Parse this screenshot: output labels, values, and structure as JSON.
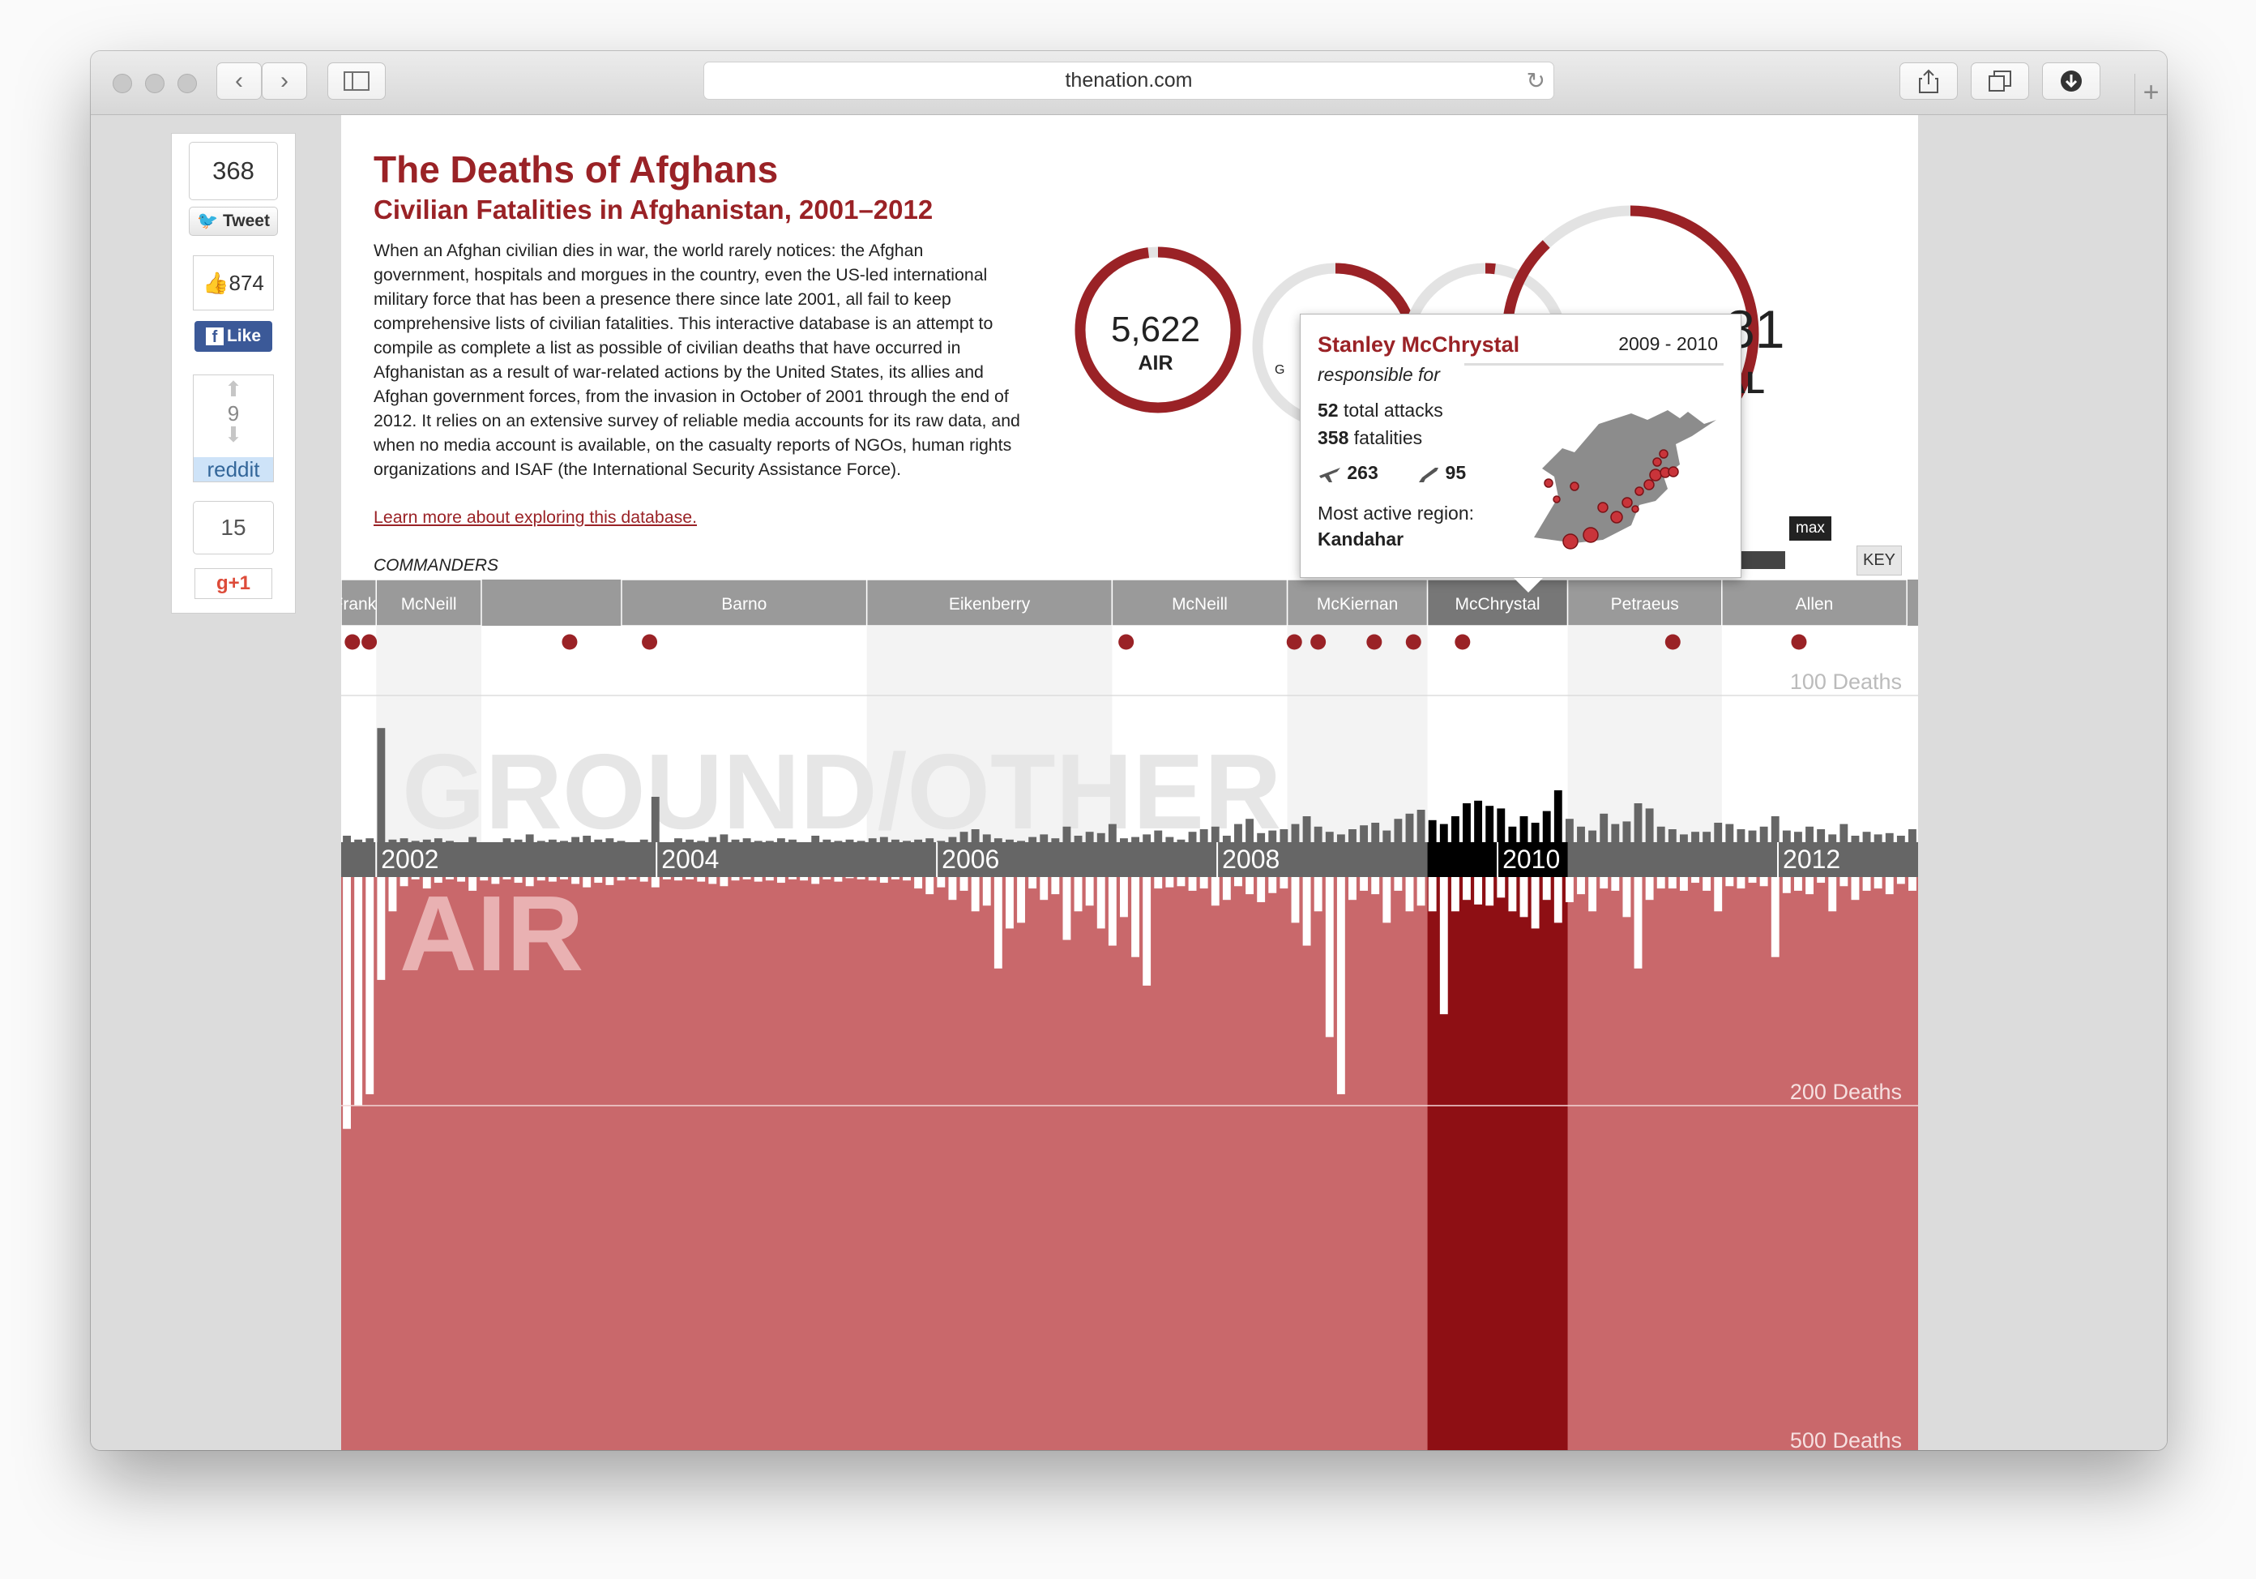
{
  "browser": {
    "url": "thenation.com"
  },
  "share": {
    "tweet_count": "368",
    "tweet_label": "Tweet",
    "like_count": "874",
    "like_label": "Like",
    "reddit_score": "9",
    "reddit_label": "reddit",
    "gplus_count": "15",
    "gplus_label": "g+1"
  },
  "article": {
    "title": "The Deaths of Afghans",
    "subtitle": "Civilian Fatalities in Afghanistan, 2001–2012",
    "intro": "When an Afghan civilian dies in war, the world rarely notices: the Afghan government, hospitals and morgues in the country, even the US-led international military force that has been a presence there since late 2001, all fail to keep comprehensive lists of civilian fatalities. This interactive database is an attempt to compile as complete a list as possible of civilian deaths that have occurred in Afghanistan as a result of war-related actions by the United States, its allies and Afghan government forces, from the invasion in October of 2001 through the end of 2012. It relies on an extensive survey of reliable media accounts for its raw data, and when no media account is available, on the casualty reports of NGOs, human rights organizations and ISAF (the International Security Assistance Force).",
    "learn_more": "Learn more about exploring this database.",
    "commanders_label": "COMMANDERS"
  },
  "totals": {
    "air_value": "5,622",
    "air_label": "AIR",
    "ground_label_visible": "G",
    "total_value_visible": "81",
    "total_label_visible": "AL"
  },
  "controls": {
    "max_label": "max",
    "key_label": "KEY"
  },
  "tooltip": {
    "name": "Stanley McChrystal",
    "years": "2009 - 2010",
    "responsible": "responsible for",
    "attacks_num": "52",
    "attacks_text": "total attacks",
    "fatalities_num": "358",
    "fatalities_text": "fatalities",
    "air_count": "263",
    "ground_count": "95",
    "region_label": "Most active region:",
    "region": "Kandahar"
  },
  "colors": {
    "accent": "#9a2226",
    "air_fill": "#c9686b",
    "highlight": "#8e0f14",
    "bar_gray": "#666666"
  },
  "chart_data": {
    "type": "bar",
    "title": "",
    "commanders": [
      {
        "name": "Franks",
        "start": 2001.75,
        "end": 2002.0
      },
      {
        "name": "McNeill",
        "start": 2002.0,
        "end": 2002.75
      },
      {
        "name": "Barno",
        "start": 2003.75,
        "end": 2005.5
      },
      {
        "name": "Eikenberry",
        "start": 2005.5,
        "end": 2007.25
      },
      {
        "name": "McNeill",
        "start": 2007.25,
        "end": 2008.5
      },
      {
        "name": "McKiernan",
        "start": 2008.5,
        "end": 2009.5
      },
      {
        "name": "McChrystal",
        "start": 2009.5,
        "end": 2010.5
      },
      {
        "name": "Petraeus",
        "start": 2010.5,
        "end": 2011.6
      },
      {
        "name": "Allen",
        "start": 2011.6,
        "end": 2012.92
      }
    ],
    "x_range": [
      2001.75,
      2013.0
    ],
    "year_labels": [
      "2002",
      "2004",
      "2006",
      "2008",
      "2010",
      "2012"
    ],
    "highlight_range": [
      2009.5,
      2010.5
    ],
    "ground_gridline": "100 Deaths",
    "air_gridlines": [
      "200 Deaths",
      "500 Deaths"
    ],
    "ground_label": "GROUND/OTHER",
    "air_label": "AIR",
    "event_dots": [
      2001.83,
      2001.95,
      2003.38,
      2003.95,
      2007.35,
      2008.55,
      2008.72,
      2009.12,
      2009.4,
      2009.75,
      2011.25,
      2012.15
    ],
    "ground_monthly": [
      5,
      2,
      3,
      88,
      2,
      3,
      1,
      2,
      3,
      1,
      0,
      4,
      0,
      0,
      3,
      2,
      6,
      1,
      2,
      1,
      4,
      5,
      2,
      3,
      1,
      0,
      2,
      35,
      0,
      3,
      2,
      1,
      4,
      6,
      2,
      3,
      1,
      1,
      3,
      2,
      0,
      5,
      2,
      1,
      2,
      1,
      3,
      4,
      2,
      1,
      2,
      3,
      1,
      4,
      8,
      10,
      6,
      3,
      2,
      1,
      4,
      6,
      3,
      12,
      5,
      8,
      7,
      14,
      3,
      4,
      6,
      9,
      4,
      2,
      8,
      10,
      12,
      5,
      14,
      18,
      7,
      9,
      10,
      14,
      20,
      12,
      8,
      6,
      10,
      13,
      15,
      9,
      18,
      22,
      25,
      17,
      14,
      20,
      30,
      32,
      28,
      26,
      12,
      20,
      15,
      24,
      40,
      18,
      12,
      9,
      22,
      14,
      16,
      30,
      26,
      12,
      10,
      6,
      8,
      8,
      15,
      14,
      10,
      9,
      12,
      20,
      9,
      8,
      12,
      10,
      6,
      14,
      5,
      8,
      6,
      7,
      5,
      10
    ],
    "air_monthly": [
      220,
      200,
      190,
      90,
      30,
      8,
      2,
      10,
      5,
      2,
      4,
      12,
      3,
      6,
      2,
      5,
      8,
      3,
      4,
      2,
      6,
      9,
      5,
      7,
      3,
      2,
      4,
      9,
      2,
      3,
      2,
      4,
      6,
      8,
      3,
      2,
      4,
      3,
      5,
      2,
      3,
      6,
      2,
      4,
      1,
      2,
      3,
      5,
      2,
      3,
      10,
      15,
      9,
      20,
      12,
      30,
      25,
      80,
      45,
      40,
      10,
      20,
      15,
      55,
      30,
      25,
      45,
      60,
      35,
      70,
      95,
      10,
      9,
      8,
      12,
      10,
      25,
      20,
      8,
      15,
      22,
      14,
      10,
      40,
      60,
      30,
      140,
      190,
      20,
      12,
      15,
      40,
      12,
      30,
      25,
      30,
      120,
      30,
      20,
      24,
      25,
      18,
      30,
      35,
      45,
      20,
      40,
      22,
      15,
      30,
      10,
      12,
      35,
      80,
      20,
      10,
      10,
      12,
      5,
      12,
      30,
      8,
      10,
      5,
      8,
      70,
      14,
      12,
      15,
      5,
      30,
      8,
      20,
      12,
      10,
      15,
      6,
      12
    ]
  }
}
